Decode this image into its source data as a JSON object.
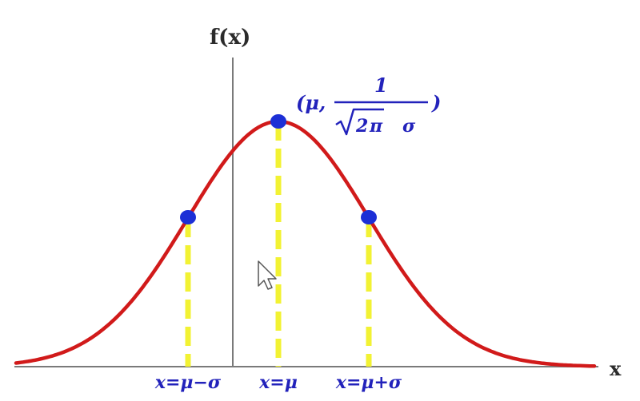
{
  "diagram": {
    "y_axis_label": "f(x)",
    "x_axis_label": "x",
    "peak_annotation": {
      "prefix": "(μ,",
      "numerator": "1",
      "denominator_root": "2",
      "denominator_pi": "π",
      "denominator_sigma": "σ",
      "suffix": ")"
    },
    "markers": [
      {
        "name": "mu-minus-sigma",
        "label": "x=μ−σ"
      },
      {
        "name": "mu",
        "label": "x=μ"
      },
      {
        "name": "mu-plus-sigma",
        "label": "x=μ+σ"
      }
    ],
    "colors": {
      "curve": "#d11a1a",
      "point": "#1c2fd6",
      "guide": "#f2f233",
      "axis": "#7a7a7a",
      "label": "#2222bb"
    }
  }
}
